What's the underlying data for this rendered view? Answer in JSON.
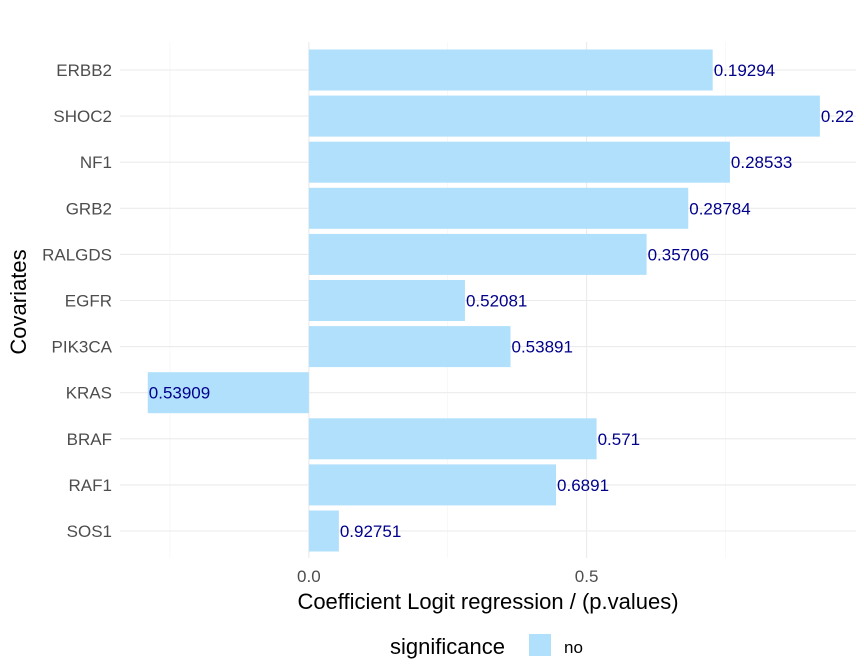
{
  "chart_data": {
    "type": "bar",
    "orientation": "horizontal",
    "title": "",
    "xlabel": "Coefficient Logit regression / (p.values)",
    "ylabel": "Covariates",
    "categories": [
      "ERBB2",
      "SHOC2",
      "NF1",
      "GRB2",
      "RALGDS",
      "EGFR",
      "PIK3CA",
      "KRAS",
      "BRAF",
      "RAF1",
      "SOS1"
    ],
    "values": [
      0.727,
      0.92,
      0.758,
      0.683,
      0.608,
      0.281,
      0.363,
      -0.29,
      0.518,
      0.445,
      0.054
    ],
    "data_labels": [
      "0.19294",
      "0.22",
      "0.28533",
      "0.28784",
      "0.35706",
      "0.52081",
      "0.53891",
      "0.53909",
      "0.571",
      "0.6891",
      "0.92751"
    ],
    "xlim": [
      -0.34,
      0.985
    ],
    "x_ticks": [
      0.0,
      0.5
    ],
    "x_tick_labels": [
      "0.0",
      "0.5"
    ],
    "grid": true,
    "legend": {
      "title": "significance",
      "placement": "bottom",
      "entries": [
        {
          "label": "no",
          "color": "#b0e0fb"
        }
      ]
    },
    "bar_color": "#b0e0fb",
    "label_color": "#00008b"
  }
}
